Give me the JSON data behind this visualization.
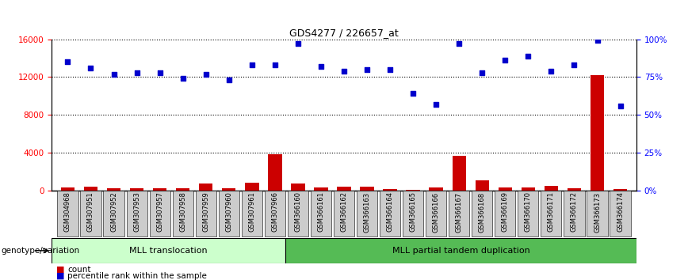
{
  "title": "GDS4277 / 226657_at",
  "samples": [
    "GSM304968",
    "GSM307951",
    "GSM307952",
    "GSM307953",
    "GSM307957",
    "GSM307958",
    "GSM307959",
    "GSM307960",
    "GSM307961",
    "GSM307966",
    "GSM366160",
    "GSM366161",
    "GSM366162",
    "GSM366163",
    "GSM366164",
    "GSM366165",
    "GSM366166",
    "GSM366167",
    "GSM366168",
    "GSM366169",
    "GSM366170",
    "GSM366171",
    "GSM366172",
    "GSM366173",
    "GSM366174"
  ],
  "count_values": [
    300,
    400,
    200,
    200,
    200,
    200,
    700,
    200,
    800,
    3800,
    700,
    300,
    400,
    400,
    150,
    100,
    350,
    3700,
    1100,
    300,
    300,
    500,
    200,
    12200,
    150
  ],
  "percentile_values": [
    85,
    81,
    77,
    78,
    78,
    74,
    77,
    73,
    83,
    83,
    97,
    82,
    79,
    80,
    80,
    64,
    57,
    97,
    78,
    86,
    89,
    79,
    83,
    99,
    56
  ],
  "group1_label": "MLL translocation",
  "group2_label": "MLL partial tandem duplication",
  "group1_color": "#ccffcc",
  "group2_color": "#55bb55",
  "group1_count": 10,
  "group2_count": 15,
  "bar_color": "#cc0000",
  "dot_color": "#0000cc",
  "left_yticks": [
    0,
    4000,
    8000,
    12000,
    16000
  ],
  "right_yticks": [
    0,
    25,
    50,
    75,
    100
  ],
  "left_ylim": [
    0,
    16000
  ],
  "right_ylim": [
    0,
    100
  ],
  "legend_count_label": "count",
  "legend_percentile_label": "percentile rank within the sample",
  "genotype_label": "genotype/variation"
}
